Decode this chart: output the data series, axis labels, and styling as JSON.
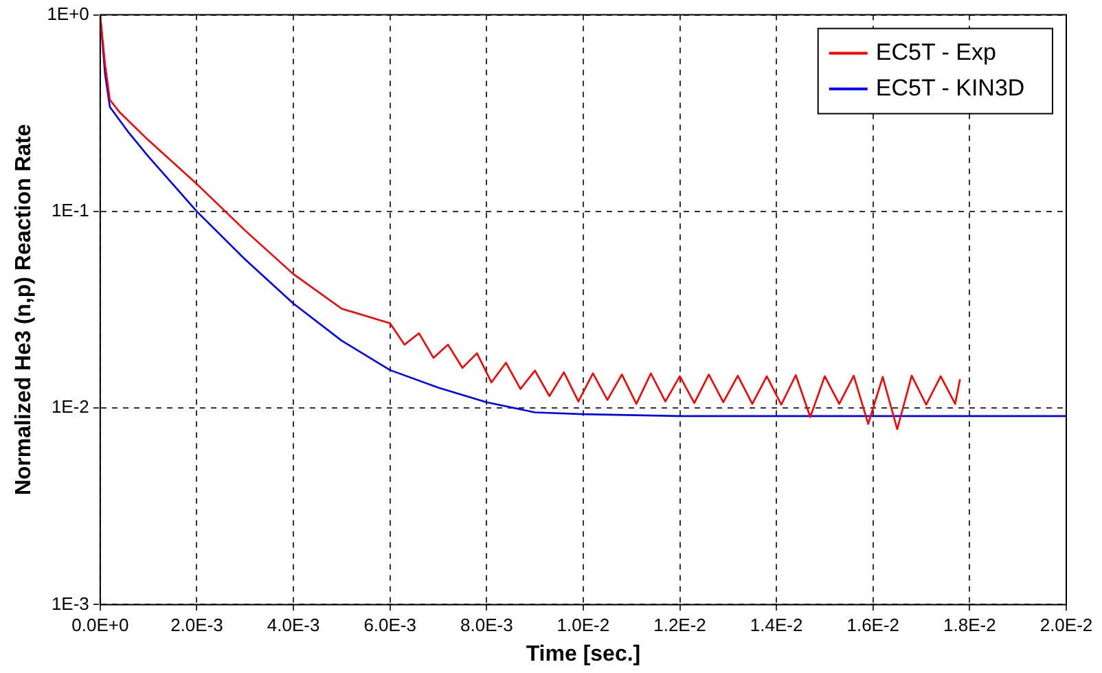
{
  "chart_data": {
    "type": "line",
    "xlabel": "Time [sec.]",
    "ylabel": "Normalized He3 (n,p) Reaction Rate",
    "xlim": [
      0,
      0.02
    ],
    "xticks": [
      {
        "value": 0,
        "label": "0.0E+0"
      },
      {
        "value": 0.002,
        "label": "2.0E-3"
      },
      {
        "value": 0.004,
        "label": "4.0E-3"
      },
      {
        "value": 0.006,
        "label": "6.0E-3"
      },
      {
        "value": 0.008,
        "label": "8.0E-3"
      },
      {
        "value": 0.01,
        "label": "1.0E-2"
      },
      {
        "value": 0.012,
        "label": "1.2E-2"
      },
      {
        "value": 0.014,
        "label": "1.4E-2"
      },
      {
        "value": 0.016,
        "label": "1.6E-2"
      },
      {
        "value": 0.018,
        "label": "1.8E-2"
      },
      {
        "value": 0.02,
        "label": "2.0E-2"
      }
    ],
    "ylim": [
      0.001,
      1
    ],
    "yticks": [
      {
        "value": 0.001,
        "label": "1E-3"
      },
      {
        "value": 0.01,
        "label": "1E-2"
      },
      {
        "value": 0.1,
        "label": "1E-1"
      },
      {
        "value": 1,
        "label": "1E+0"
      }
    ],
    "log": "y",
    "grid": true,
    "legend": "top right",
    "marker": "none",
    "line_style": "solid",
    "series": [
      {
        "name": "EC5T - Exp",
        "color": "#ff0000",
        "x": [
          0,
          0.0001,
          0.0002,
          0.0004,
          0.001,
          0.002,
          0.003,
          0.004,
          0.005,
          0.006,
          0.0063,
          0.0066,
          0.0069,
          0.0072,
          0.0075,
          0.0078,
          0.0081,
          0.0084,
          0.0087,
          0.009,
          0.0093,
          0.0096,
          0.0099,
          0.0102,
          0.0105,
          0.0108,
          0.0111,
          0.0114,
          0.0117,
          0.012,
          0.0123,
          0.0126,
          0.0129,
          0.0132,
          0.0135,
          0.0138,
          0.0141,
          0.0144,
          0.0147,
          0.015,
          0.0153,
          0.0156,
          0.0159,
          0.0162,
          0.0165,
          0.0168,
          0.0171,
          0.0174,
          0.0177,
          0.0178
        ],
        "values": [
          1.0,
          0.56,
          0.37,
          0.32,
          0.23,
          0.138,
          0.08,
          0.048,
          0.032,
          0.027,
          0.021,
          0.024,
          0.018,
          0.021,
          0.016,
          0.019,
          0.0135,
          0.017,
          0.0125,
          0.0155,
          0.0115,
          0.0152,
          0.0108,
          0.015,
          0.011,
          0.0148,
          0.0105,
          0.015,
          0.0108,
          0.0145,
          0.0106,
          0.0148,
          0.0107,
          0.0146,
          0.0105,
          0.0145,
          0.0104,
          0.0147,
          0.009,
          0.0145,
          0.0105,
          0.0146,
          0.0083,
          0.0144,
          0.0078,
          0.0146,
          0.0104,
          0.0145,
          0.0105,
          0.014
        ]
      },
      {
        "name": "EC5T - KIN3D",
        "color": "#0000ff",
        "x": [
          0,
          0.0001,
          0.0002,
          0.0006,
          0.001,
          0.002,
          0.003,
          0.004,
          0.005,
          0.006,
          0.007,
          0.008,
          0.009,
          0.01,
          0.012,
          0.014,
          0.016,
          0.018,
          0.02
        ],
        "values": [
          1.0,
          0.5,
          0.34,
          0.25,
          0.19,
          0.1,
          0.057,
          0.034,
          0.022,
          0.0156,
          0.0127,
          0.0107,
          0.0095,
          0.0093,
          0.0091,
          0.0091,
          0.0091,
          0.0091,
          0.0091
        ]
      }
    ]
  }
}
